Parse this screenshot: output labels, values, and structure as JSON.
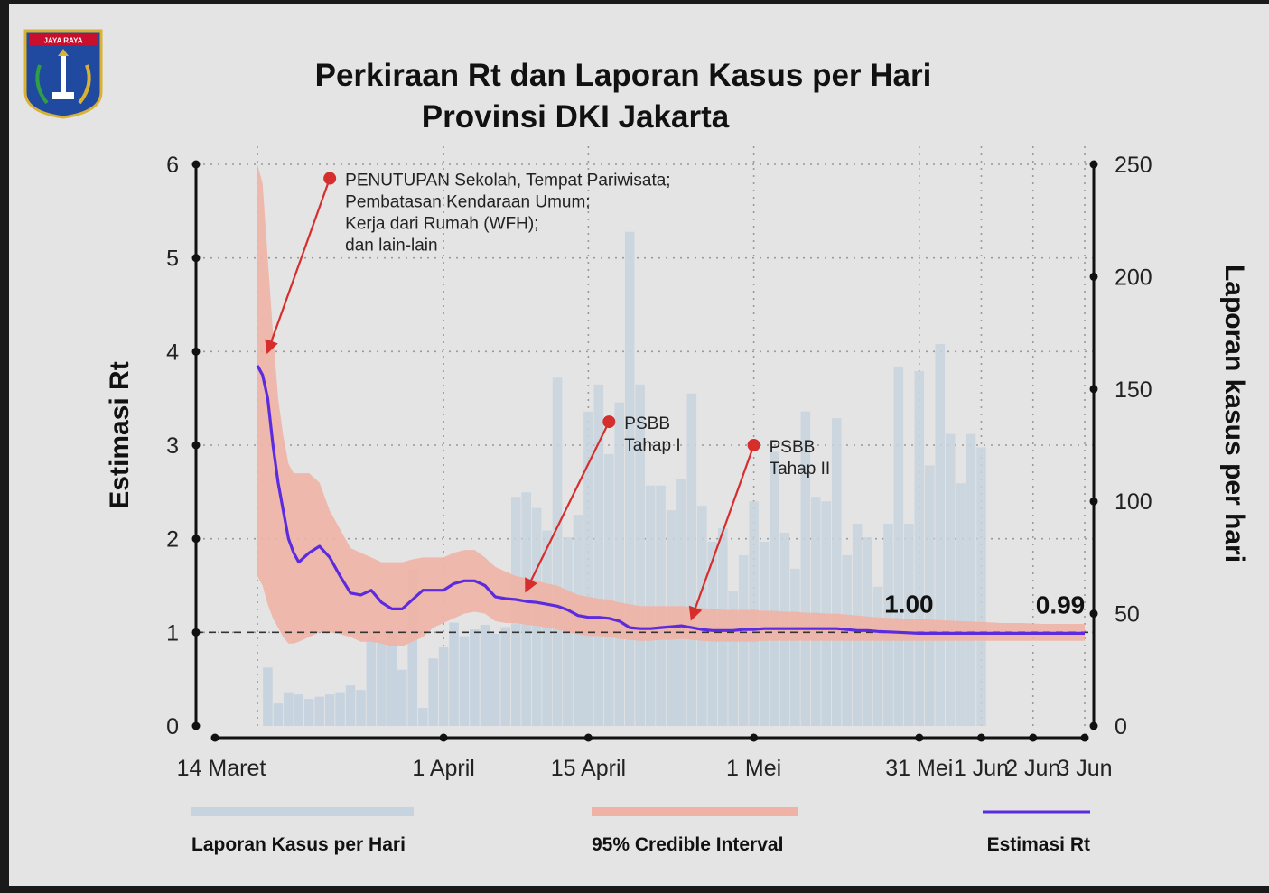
{
  "colors": {
    "background": "#e4e4e4",
    "bars": "#c7d3de",
    "band": "#efb2a5",
    "line": "#5b2be0",
    "arrow": "#d62d2d",
    "axis": "#111111",
    "grid": "#9a9a9a"
  },
  "logo": {
    "icon": "jakarta-crest-icon",
    "banner": "JAYA RAYA"
  },
  "chart_data": {
    "type": "bar",
    "title": "Perkiraan Rt dan Laporan Kasus per Hari",
    "subtitle": "Provinsi DKI Jakarta",
    "ylabel_left": "Estimasi Rt",
    "ylabel_right": "Laporan kasus per hari",
    "yleft_range": [
      0,
      6
    ],
    "yright_range": [
      0,
      250
    ],
    "yleft_ticks": [
      "0",
      "1",
      "2",
      "3",
      "4",
      "5",
      "6"
    ],
    "yright_ticks": [
      "0",
      "50",
      "100",
      "150",
      "200",
      "250"
    ],
    "x_ticks": [
      {
        "label": "14 Maret",
        "day": 0
      },
      {
        "label": "1 April",
        "day": 18
      },
      {
        "label": "15 April",
        "day": 32
      },
      {
        "label": "1 Mei",
        "day": 48
      },
      {
        "label": "31 Mei",
        "day": 64
      },
      {
        "label": "1 Jun",
        "day": 70
      },
      {
        "label": "2 Jun",
        "day": 75
      },
      {
        "label": "3 Jun",
        "day": 80
      }
    ],
    "grid": true,
    "reference_line_rt": 1,
    "bars_day_start": 1,
    "bars_cases": [
      26,
      10,
      15,
      14,
      12,
      13,
      14,
      15,
      18,
      16,
      40,
      38,
      42,
      25,
      70,
      8,
      30,
      35,
      46,
      40,
      43,
      45,
      41,
      44,
      45,
      56,
      55,
      55,
      55,
      55,
      55,
      50,
      47,
      45,
      45,
      45,
      45,
      45,
      45,
      40,
      40,
      43,
      45,
      45,
      45,
      45,
      40,
      40,
      45,
      42,
      45,
      45,
      45,
      45,
      40,
      45,
      45,
      40,
      45,
      45,
      45,
      45,
      45,
      45,
      45
    ],
    "bars_overlay_cases": [
      0,
      0,
      0,
      0,
      0,
      0,
      0,
      0,
      0,
      0,
      0,
      0,
      0,
      0,
      0,
      0,
      0,
      0,
      0,
      0,
      0,
      0,
      0,
      0,
      102,
      104,
      97,
      87,
      155,
      84,
      94,
      140,
      152,
      121,
      144,
      220,
      152,
      107,
      107,
      96,
      110,
      148,
      98,
      82,
      88,
      60,
      76,
      100,
      82,
      122,
      86,
      70,
      140,
      102,
      100,
      137,
      76,
      90,
      84,
      62,
      90,
      160,
      90,
      158,
      116,
      170,
      130,
      108,
      130,
      124
    ],
    "rt_x": [
      0,
      0.5,
      1,
      1.5,
      2,
      2.5,
      3,
      3.5,
      4,
      5,
      6,
      7,
      8,
      9,
      10,
      11,
      12,
      13,
      14,
      15,
      16,
      17,
      18,
      19,
      20,
      21,
      22,
      23,
      24,
      25,
      26,
      27,
      28,
      29,
      30,
      31,
      32,
      33,
      34,
      35,
      36,
      37,
      38,
      39,
      40,
      41,
      42,
      43,
      44,
      45,
      46,
      47,
      48,
      49,
      50,
      51,
      52,
      53,
      54,
      55,
      56,
      57,
      58,
      59,
      60,
      62,
      64,
      66,
      68,
      70,
      72,
      74,
      76,
      78,
      80
    ],
    "rt": [
      3.85,
      3.75,
      3.5,
      3.0,
      2.6,
      2.3,
      2.0,
      1.85,
      1.75,
      1.85,
      1.92,
      1.8,
      1.6,
      1.42,
      1.4,
      1.45,
      1.32,
      1.25,
      1.25,
      1.35,
      1.45,
      1.45,
      1.45,
      1.52,
      1.55,
      1.55,
      1.5,
      1.38,
      1.36,
      1.35,
      1.33,
      1.32,
      1.3,
      1.28,
      1.24,
      1.18,
      1.16,
      1.16,
      1.15,
      1.12,
      1.05,
      1.04,
      1.04,
      1.05,
      1.06,
      1.07,
      1.05,
      1.03,
      1.02,
      1.02,
      1.02,
      1.03,
      1.03,
      1.04,
      1.04,
      1.04,
      1.04,
      1.04,
      1.04,
      1.04,
      1.04,
      1.03,
      1.02,
      1.02,
      1.01,
      1.0,
      0.99,
      0.99,
      0.99,
      0.99,
      0.99,
      0.99,
      0.99,
      0.99,
      0.99
    ],
    "ci_upper": [
      6.0,
      5.8,
      5.0,
      4.2,
      3.5,
      3.1,
      2.8,
      2.7,
      2.7,
      2.7,
      2.6,
      2.3,
      2.1,
      1.9,
      1.85,
      1.8,
      1.75,
      1.75,
      1.75,
      1.78,
      1.8,
      1.8,
      1.8,
      1.85,
      1.88,
      1.88,
      1.8,
      1.7,
      1.65,
      1.6,
      1.58,
      1.55,
      1.52,
      1.5,
      1.45,
      1.4,
      1.38,
      1.36,
      1.35,
      1.32,
      1.3,
      1.28,
      1.28,
      1.28,
      1.28,
      1.28,
      1.27,
      1.26,
      1.25,
      1.24,
      1.24,
      1.24,
      1.24,
      1.23,
      1.23,
      1.22,
      1.22,
      1.21,
      1.21,
      1.2,
      1.2,
      1.19,
      1.18,
      1.17,
      1.16,
      1.15,
      1.14,
      1.13,
      1.12,
      1.11,
      1.1,
      1.1,
      1.09,
      1.09,
      1.09
    ],
    "ci_lower": [
      1.6,
      1.5,
      1.3,
      1.15,
      1.05,
      0.95,
      0.88,
      0.88,
      0.9,
      0.95,
      1.0,
      1.0,
      0.98,
      0.95,
      0.9,
      0.9,
      0.88,
      0.85,
      0.85,
      0.9,
      0.95,
      1.05,
      1.1,
      1.15,
      1.2,
      1.22,
      1.2,
      1.12,
      1.1,
      1.1,
      1.08,
      1.07,
      1.05,
      1.03,
      1.0,
      0.98,
      0.96,
      0.96,
      0.95,
      0.93,
      0.92,
      0.91,
      0.91,
      0.92,
      0.92,
      0.93,
      0.92,
      0.91,
      0.9,
      0.9,
      0.9,
      0.9,
      0.9,
      0.91,
      0.91,
      0.91,
      0.91,
      0.91,
      0.91,
      0.91,
      0.91,
      0.91,
      0.91,
      0.91,
      0.91,
      0.91,
      0.91,
      0.91,
      0.91,
      0.91,
      0.91,
      0.91,
      0.91,
      0.91,
      0.91
    ],
    "value_labels": [
      {
        "text": "1.00",
        "day": 63,
        "rt": 1.0
      },
      {
        "text": "0.99",
        "day": 80,
        "rt": 0.99
      }
    ],
    "annotations": [
      {
        "lines": [
          "PENUTUPAN Sekolah, Tempat Pariwisata;",
          "Pembatasan Kendaraan Umum;",
          "Kerja dari Rumah (WFH);",
          "dan lain-lain"
        ],
        "from_day": 7,
        "from_rt": 5.85,
        "to_day": 1,
        "to_rt": 4.0
      },
      {
        "lines": [
          "PSBB",
          "Tahap I"
        ],
        "from_day": 34,
        "from_rt": 3.25,
        "to_day": 26,
        "to_rt": 1.45
      },
      {
        "lines": [
          "PSBB",
          "Tahap II"
        ],
        "from_day": 48,
        "from_rt": 3.0,
        "to_day": 42,
        "to_rt": 1.15
      }
    ],
    "legend": {
      "placement": "bottom",
      "items": [
        {
          "label": "Laporan Kasus per Hari",
          "kind": "bar"
        },
        {
          "label": "95% Credible Interval",
          "kind": "band"
        },
        {
          "label": "Estimasi Rt",
          "kind": "line"
        }
      ]
    }
  }
}
